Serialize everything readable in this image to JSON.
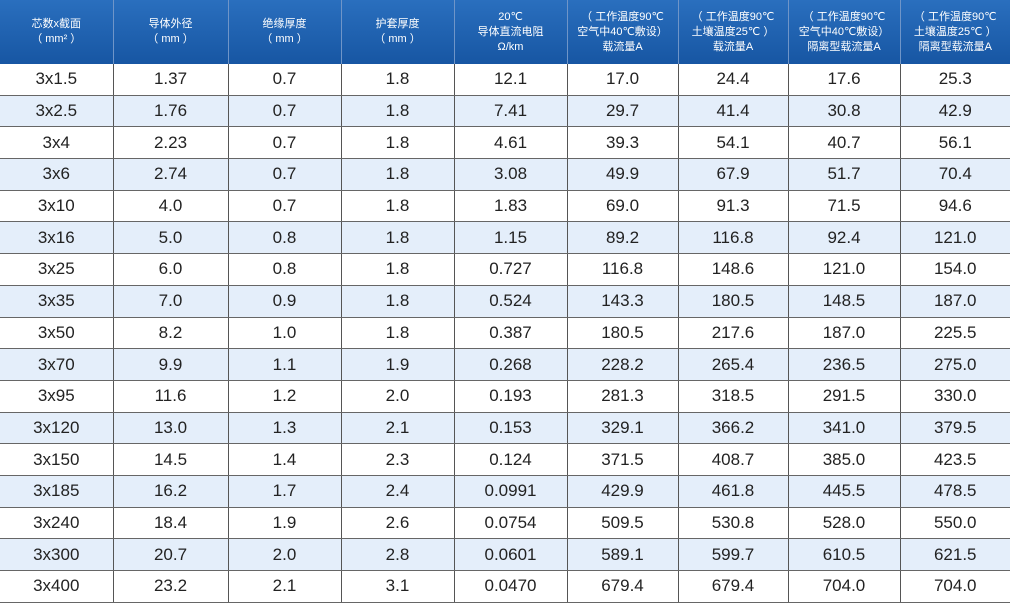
{
  "table": {
    "header": [
      [
        "芯数x截面",
        "（ mm² ）"
      ],
      [
        "导体外径",
        "（ mm ）"
      ],
      [
        "绝缘厚度",
        "（ mm ）"
      ],
      [
        "护套厚度",
        "（ mm ）"
      ],
      [
        "20℃",
        "导体直流电阻",
        "Ω/km"
      ],
      [
        "（ 工作温度90℃",
        "空气中40℃敷设）",
        "载流量A"
      ],
      [
        "（ 工作温度90℃",
        "土壤温度25℃ ）",
        "载流量A"
      ],
      [
        "（ 工作温度90℃",
        "空气中40℃敷设）",
        "隔离型载流量A"
      ],
      [
        "（ 工作温度90℃",
        "土壤温度25℃ ）",
        "隔离型载流量A"
      ]
    ],
    "rows": [
      [
        "3x1.5",
        "1.37",
        "0.7",
        "1.8",
        "12.1",
        "17.0",
        "24.4",
        "17.6",
        "25.3"
      ],
      [
        "3x2.5",
        "1.76",
        "0.7",
        "1.8",
        "7.41",
        "29.7",
        "41.4",
        "30.8",
        "42.9"
      ],
      [
        "3x4",
        "2.23",
        "0.7",
        "1.8",
        "4.61",
        "39.3",
        "54.1",
        "40.7",
        "56.1"
      ],
      [
        "3x6",
        "2.74",
        "0.7",
        "1.8",
        "3.08",
        "49.9",
        "67.9",
        "51.7",
        "70.4"
      ],
      [
        "3x10",
        "4.0",
        "0.7",
        "1.8",
        "1.83",
        "69.0",
        "91.3",
        "71.5",
        "94.6"
      ],
      [
        "3x16",
        "5.0",
        "0.8",
        "1.8",
        "1.15",
        "89.2",
        "116.8",
        "92.4",
        "121.0"
      ],
      [
        "3x25",
        "6.0",
        "0.8",
        "1.8",
        "0.727",
        "116.8",
        "148.6",
        "121.0",
        "154.0"
      ],
      [
        "3x35",
        "7.0",
        "0.9",
        "1.8",
        "0.524",
        "143.3",
        "180.5",
        "148.5",
        "187.0"
      ],
      [
        "3x50",
        "8.2",
        "1.0",
        "1.8",
        "0.387",
        "180.5",
        "217.6",
        "187.0",
        "225.5"
      ],
      [
        "3x70",
        "9.9",
        "1.1",
        "1.9",
        "0.268",
        "228.2",
        "265.4",
        "236.5",
        "275.0"
      ],
      [
        "3x95",
        "11.6",
        "1.2",
        "2.0",
        "0.193",
        "281.3",
        "318.5",
        "291.5",
        "330.0"
      ],
      [
        "3x120",
        "13.0",
        "1.3",
        "2.1",
        "0.153",
        "329.1",
        "366.2",
        "341.0",
        "379.5"
      ],
      [
        "3x150",
        "14.5",
        "1.4",
        "2.3",
        "0.124",
        "371.5",
        "408.7",
        "385.0",
        "423.5"
      ],
      [
        "3x185",
        "16.2",
        "1.7",
        "2.4",
        "0.0991",
        "429.9",
        "461.8",
        "445.5",
        "478.5"
      ],
      [
        "3x240",
        "18.4",
        "1.9",
        "2.6",
        "0.0754",
        "509.5",
        "530.8",
        "528.0",
        "550.0"
      ],
      [
        "3x300",
        "20.7",
        "2.0",
        "2.8",
        "0.0601",
        "589.1",
        "599.7",
        "610.5",
        "621.5"
      ],
      [
        "3x400",
        "23.2",
        "2.1",
        "3.1",
        "0.0470",
        "679.4",
        "679.4",
        "704.0",
        "704.0"
      ]
    ]
  }
}
